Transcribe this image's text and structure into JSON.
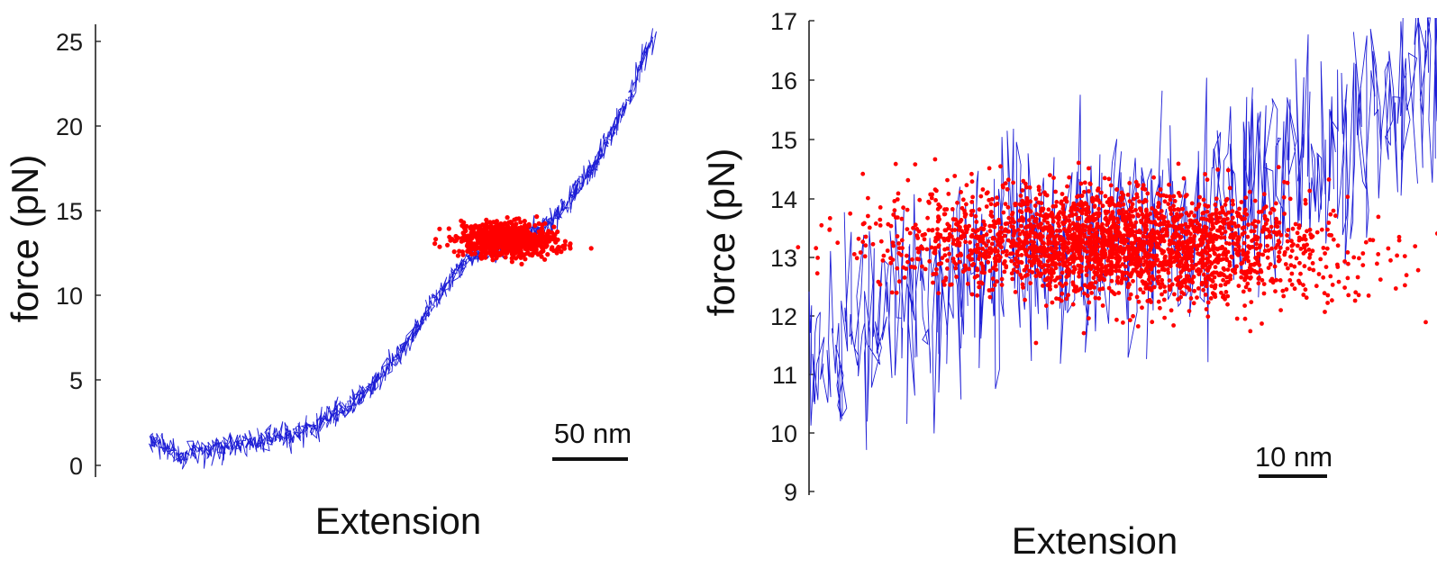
{
  "colors": {
    "trace": "#1f1fd6",
    "cluster": "#ff0000",
    "axis": "#222222",
    "text": "#111111"
  },
  "chart_data": [
    {
      "type": "scatter",
      "title": "",
      "xlabel": "Extension",
      "ylabel": "force (pN)",
      "ylim": [
        0,
        25
      ],
      "yticks": [
        0,
        5,
        10,
        15,
        20,
        25
      ],
      "x_ticks_shown": false,
      "grid": false,
      "scale_bar": {
        "label": "50 nm",
        "length_nm": 50
      },
      "xlim": [
        0,
        360
      ],
      "series": [
        {
          "kind": "line",
          "x": [
            0,
            20,
            40,
            60,
            80,
            100,
            120,
            140,
            160,
            180,
            200,
            220,
            240,
            260,
            270,
            280,
            290,
            300,
            310,
            320,
            330,
            340,
            350,
            360
          ],
          "y": [
            1.6,
            0.7,
            0.9,
            1.2,
            1.4,
            1.8,
            2.4,
            3.4,
            4.8,
            6.6,
            9.2,
            11.5,
            12.8,
            13.2,
            13.4,
            13.9,
            14.6,
            15.6,
            16.8,
            18.1,
            19.6,
            21.3,
            23.2,
            25.3
          ],
          "noise": 0.35
        },
        {
          "kind": "scatter",
          "cluster": {
            "cx": 255,
            "cy": 13.3,
            "sx": 52,
            "sy": 2.0
          }
        }
      ]
    },
    {
      "type": "scatter",
      "title": "",
      "xlabel": "Extension",
      "ylabel": "force (pN)",
      "ylim": [
        9,
        17
      ],
      "yticks": [
        9,
        10,
        11,
        12,
        13,
        14,
        15,
        16,
        17
      ],
      "x_ticks_shown": false,
      "grid": false,
      "scale_bar": {
        "label": "10 nm",
        "length_nm": 10
      },
      "xlim": [
        0,
        100
      ],
      "series": [
        {
          "kind": "line",
          "x": [
            0,
            5,
            10,
            15,
            20,
            25,
            30,
            35,
            40,
            45,
            50,
            55,
            60,
            65,
            70,
            75,
            80,
            85,
            90,
            95,
            100
          ],
          "y": [
            11.0,
            11.6,
            12.0,
            12.2,
            12.5,
            12.8,
            13.0,
            13.1,
            13.2,
            13.2,
            13.3,
            13.4,
            13.6,
            13.8,
            14.1,
            14.4,
            14.7,
            15.0,
            15.4,
            15.9,
            16.4
          ],
          "noise": 0.9
        },
        {
          "kind": "scatter",
          "cluster": {
            "cx": 48,
            "cy": 13.2,
            "sx": 50,
            "sy": 2.1
          }
        }
      ]
    }
  ]
}
